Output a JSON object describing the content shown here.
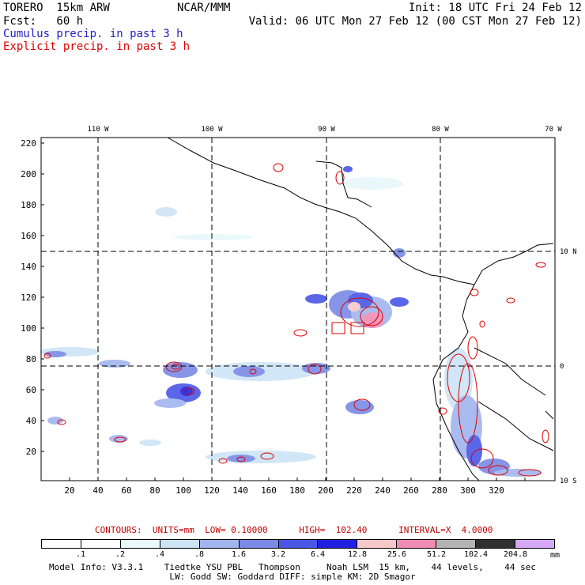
{
  "header": {
    "model": "TORERO  15km ARW",
    "org": "NCAR/MMM",
    "init": "Init: 18 UTC Fri 24 Feb 12",
    "fcst": "Fcst:   60 h",
    "valid": "Valid: 06 UTC Mon 27 Feb 12 (00 CST Mon 27 Feb 12)",
    "line1": "Cumulus precip. in past 3 h",
    "line2": "Explicit precip. in past 3 h"
  },
  "colors": {
    "cumulus_line": "#2020c8",
    "explicit_line": "#e00000",
    "contour": "#e00000"
  },
  "axes": {
    "x_ticks": [
      "20",
      "40",
      "60",
      "80",
      "100",
      "120",
      "140",
      "160",
      "180",
      "200",
      "220",
      "240",
      "260",
      "280",
      "300",
      "320"
    ],
    "y_ticks": [
      "20",
      "40",
      "60",
      "80",
      "100",
      "120",
      "140",
      "160",
      "180",
      "200",
      "220"
    ],
    "lon_labels": [
      "110 W",
      "100 W",
      "90 W",
      "80 W",
      "70 W"
    ],
    "lat_labels": [
      "10 N",
      "0",
      "10 S"
    ]
  },
  "contours_line": {
    "contours": "CONTOURS:  UNITS=mm  LOW= 0.10000",
    "high": "HIGH=  102.40",
    "interval": "INTERVAL=X  4.0000"
  },
  "legend": {
    "labels": [
      ".1",
      ".2",
      ".4",
      ".8",
      "1.6",
      "3.2",
      "6.4",
      "12.8",
      "25.6",
      "51.2",
      "102.4",
      "204.8"
    ],
    "colors": [
      "#ffffff",
      "#ffffff",
      "#e8f8fc",
      "#cde4f6",
      "#a0b4ee",
      "#7a8ae6",
      "#4a56e6",
      "#2020e0",
      "#f8c8c8",
      "#f08cb4",
      "#b4b4b4",
      "#303030",
      "#d8a8f8"
    ],
    "unit": "mm"
  },
  "footer": {
    "line1": "Model Info: V3.3.1    Tiedtke YSU PBL   Thompson     Noah LSM  15 km,    44 levels,    44 sec",
    "line2": "LW: Godd SW: Goddard DIFF: simple KM: 2D Smagor"
  }
}
